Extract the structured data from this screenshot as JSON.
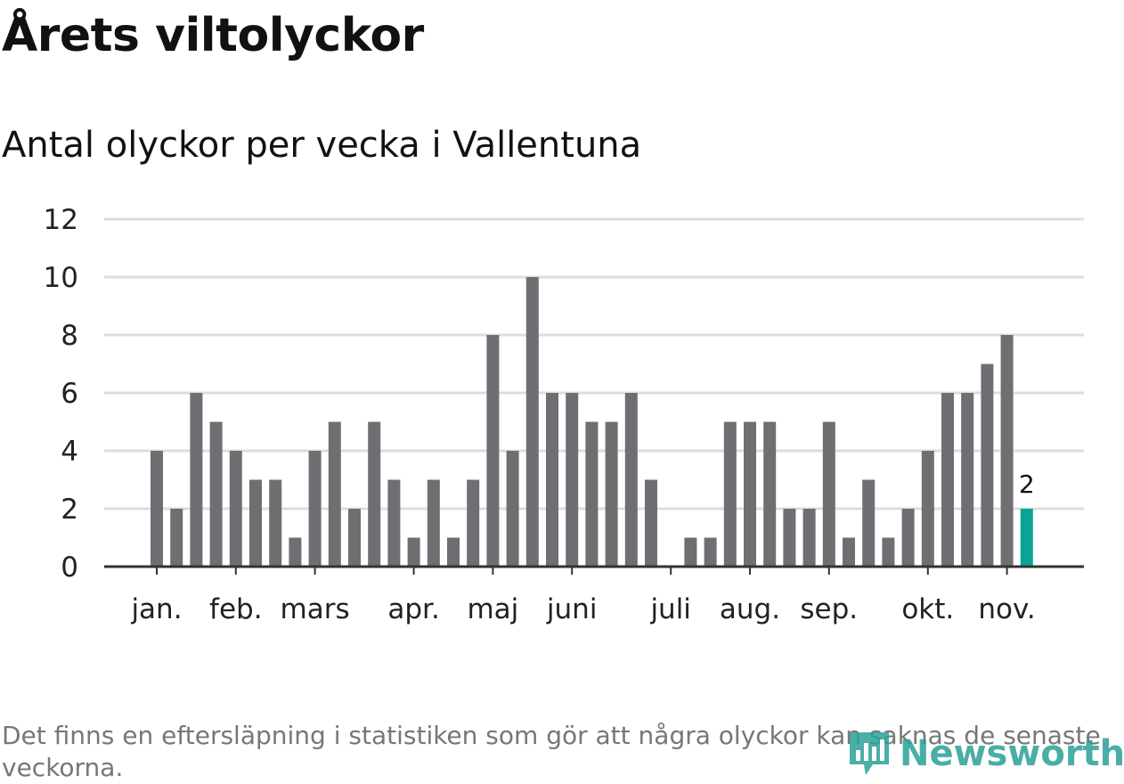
{
  "header": {
    "title": "Årets viltolyckor",
    "subtitle": "Antal olyckor per vecka i Vallentuna"
  },
  "footnote": "Det finns en eftersläpning i statistiken som gör att några olyckor kan saknas de senaste veckorna.",
  "logo": {
    "text": "Newsworthy"
  },
  "colors": {
    "bar": "#6f6e73",
    "highlight": "#0aa396",
    "grid": "#dddddd",
    "axis": "#333333"
  },
  "chart_data": {
    "type": "bar",
    "ylim": [
      0,
      12
    ],
    "yticks": [
      0,
      2,
      4,
      6,
      8,
      10,
      12
    ],
    "grid": true,
    "x_labels": [
      "jan.",
      "feb.",
      "mars",
      "apr.",
      "maj",
      "juni",
      "juli",
      "aug.",
      "sep.",
      "okt.",
      "nov."
    ],
    "values": [
      4,
      2,
      6,
      5,
      4,
      3,
      3,
      1,
      4,
      5,
      2,
      5,
      3,
      1,
      3,
      1,
      3,
      8,
      4,
      10,
      6,
      6,
      5,
      5,
      6,
      3,
      0,
      1,
      1,
      5,
      5,
      5,
      2,
      2,
      5,
      1,
      3,
      1,
      2,
      4,
      6,
      6,
      7,
      8,
      2
    ],
    "highlight_last": true,
    "data_labels": [
      {
        "index": 44,
        "text": "2"
      }
    ]
  }
}
